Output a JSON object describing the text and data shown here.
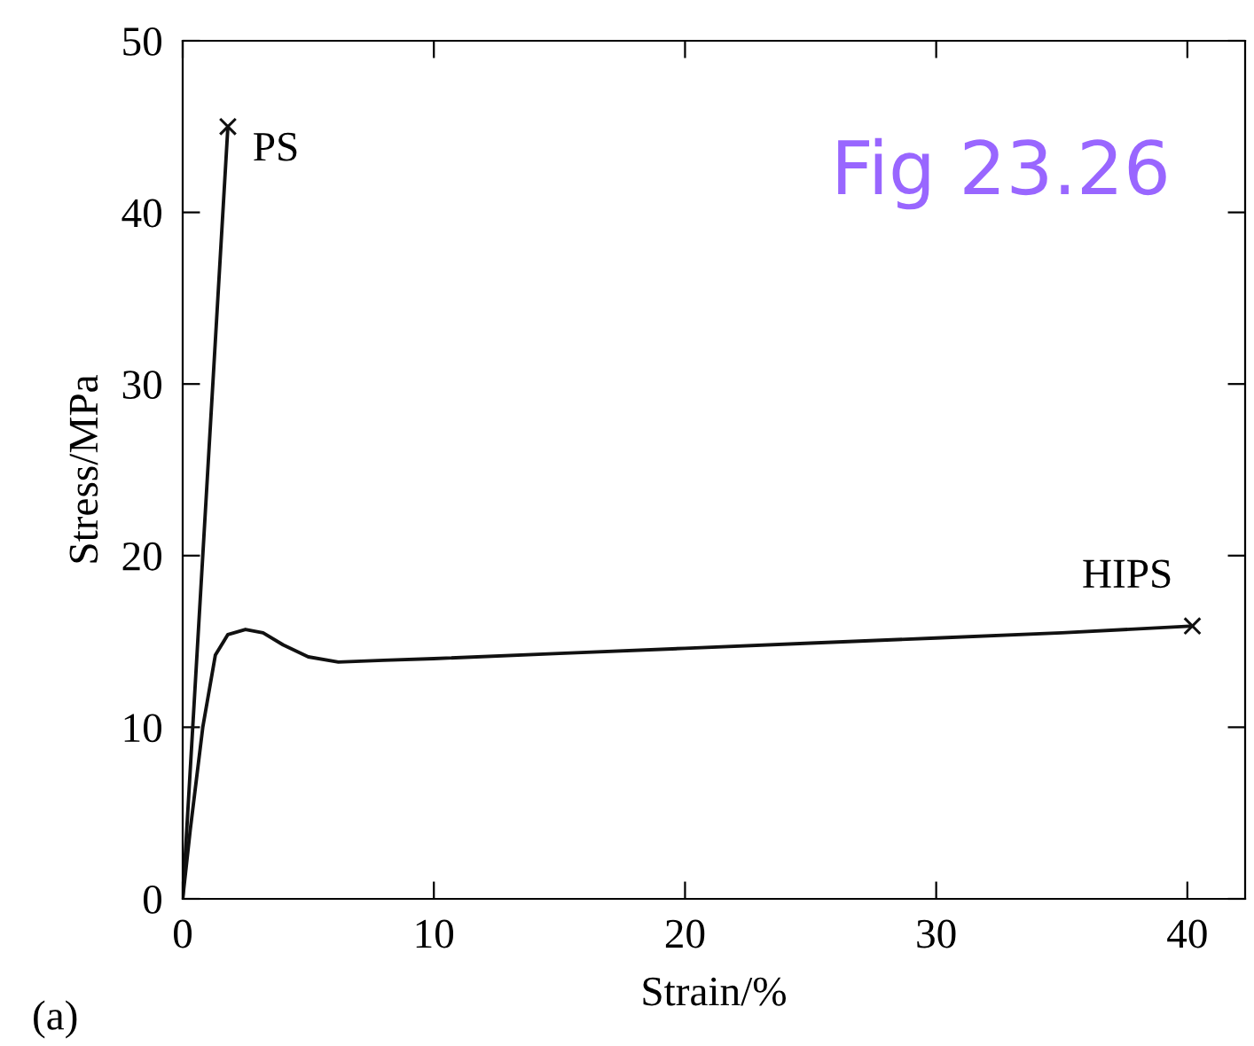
{
  "chart_data": {
    "type": "line",
    "xlabel": "Strain/%",
    "ylabel": "Stress/MPa",
    "xlim": [
      0,
      42.3
    ],
    "ylim": [
      0,
      50
    ],
    "xticks": [
      0,
      10,
      20,
      30,
      40
    ],
    "yticks": [
      0,
      10,
      20,
      30,
      40,
      50
    ],
    "grid": false,
    "legend": false,
    "marker": "none",
    "line_style": "solid",
    "series": [
      {
        "name": "PS",
        "color": "#111111",
        "x": [
          0,
          1.8
        ],
        "values": [
          0,
          45
        ]
      },
      {
        "name": "HIPS",
        "color": "#111111",
        "x": [
          0,
          0.3,
          0.8,
          1.3,
          1.8,
          2.5,
          3.2,
          4.0,
          5.0,
          6.2,
          8,
          10,
          15,
          20,
          25,
          30,
          35,
          40.2
        ],
        "values": [
          0,
          4,
          10,
          14.2,
          15.4,
          15.7,
          15.5,
          14.8,
          14.1,
          13.8,
          13.9,
          14.0,
          14.3,
          14.6,
          14.9,
          15.2,
          15.5,
          15.9
        ]
      },
      {
        "type": "scatter",
        "marker": "cross",
        "color": "#111111",
        "x": [
          1.8,
          40.2
        ],
        "values": [
          45,
          15.9
        ]
      }
    ],
    "annotations": [
      "Fig 23.26",
      "(a)"
    ]
  }
}
